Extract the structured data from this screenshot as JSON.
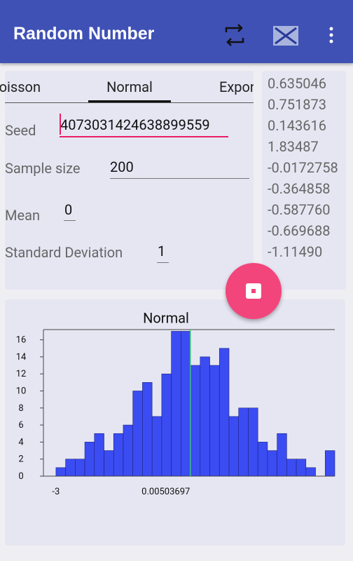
{
  "app_bar": {
    "title": "Random Number"
  },
  "tabs": [
    "Poisson",
    "Normal",
    "Exponential"
  ],
  "form": {
    "seed_label": "Seed",
    "seed": "4073031424638899559",
    "sample_size_label": "Sample size",
    "sample_size": "200",
    "mean_label": "Mean",
    "mean": "0",
    "sd_label": "Standard Deviation",
    "sd": "1"
  },
  "results": [
    "0.635046",
    "0.751873",
    "0.143616",
    "1.83487",
    "-0.0172758",
    "-0.364858",
    "-0.587760",
    "-0.669688",
    "-1.11490"
  ],
  "chart_data": {
    "type": "histogram",
    "title": "Normal",
    "color": "#3b4cf2",
    "bins": [
      -3,
      -2.785,
      -2.57,
      -2.355,
      -2.14,
      -1.925,
      -1.71,
      -1.495,
      -1.28,
      -1.065,
      -0.85,
      -0.635,
      -0.42,
      -0.205,
      0.01,
      0.225,
      0.44,
      0.655,
      0.87,
      1.085,
      1.3,
      1.515,
      1.73,
      1.945,
      2.16,
      2.375,
      2.59,
      2.805,
      3.02,
      3.235
    ],
    "counts": [
      1,
      2,
      2,
      4,
      5,
      3,
      5,
      6,
      10,
      11,
      7,
      12,
      17,
      17,
      13,
      14,
      13,
      15,
      7,
      8,
      8,
      4,
      3,
      5,
      2,
      2,
      1,
      0,
      3
    ],
    "xlim": [
      -3.28,
      3.235
    ],
    "xticks": [
      -3,
      0.00503697
    ],
    "ylim": [
      0,
      17.2
    ],
    "yticks": [
      0,
      2,
      4,
      6,
      8,
      10,
      12,
      14,
      16
    ]
  }
}
